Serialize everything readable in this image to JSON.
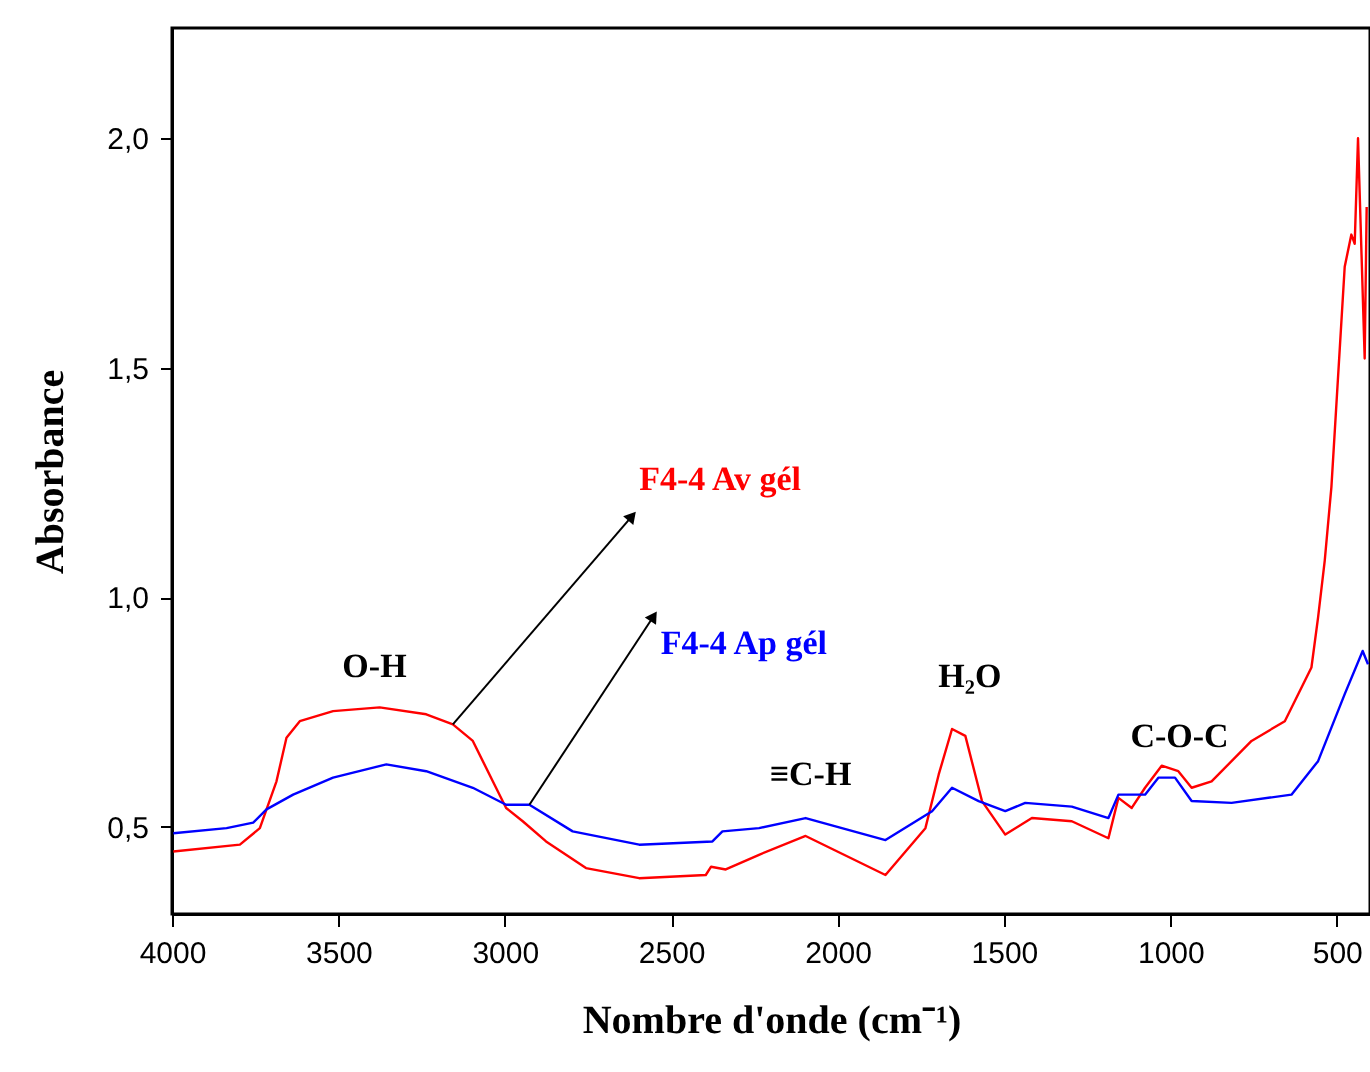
{
  "chart_data": {
    "type": "line",
    "xlabel": "Nombre d'onde (cm⁻¹)",
    "ylabel": "Absorbance",
    "xlim": [
      4000,
      400
    ],
    "ylim": [
      0.31,
      2.24
    ],
    "xticks": [
      4000,
      3500,
      3000,
      2500,
      2000,
      1500,
      1000,
      500
    ],
    "yticks": [
      {
        "value": 0.5,
        "label": "0,5"
      },
      {
        "value": 1.0,
        "label": "1,0"
      },
      {
        "value": 1.5,
        "label": "1,5"
      },
      {
        "value": 2.0,
        "label": "2,0"
      }
    ],
    "grid": false,
    "marker": "none",
    "line_style": "solid",
    "series": [
      {
        "name": "F4-4 Av gél",
        "color": "#ff0000",
        "x": [
          3996,
          3796,
          3736,
          3686,
          3656,
          3616,
          3516,
          3376,
          3236,
          3156,
          3096,
          3036,
          2996,
          2946,
          2876,
          2756,
          2596,
          2396,
          2380,
          2336,
          2236,
          2096,
          1856,
          1736,
          1696,
          1656,
          1616,
          1566,
          1496,
          1416,
          1296,
          1186,
          1156,
          1116,
          1076,
          1026,
          976,
          936,
          876,
          756,
          656,
          576,
          556,
          536,
          516,
          476,
          456,
          446,
          436,
          416,
          410
        ],
        "values": [
          0.446,
          0.461,
          0.497,
          0.599,
          0.694,
          0.73,
          0.752,
          0.76,
          0.745,
          0.723,
          0.687,
          0.599,
          0.541,
          0.512,
          0.468,
          0.41,
          0.388,
          0.395,
          0.413,
          0.407,
          0.439,
          0.48,
          0.395,
          0.497,
          0.614,
          0.713,
          0.698,
          0.556,
          0.483,
          0.519,
          0.512,
          0.475,
          0.563,
          0.541,
          0.585,
          0.633,
          0.621,
          0.585,
          0.599,
          0.687,
          0.73,
          0.847,
          0.956,
          1.08,
          1.24,
          1.72,
          1.79,
          1.77,
          2.0,
          1.52,
          1.85
        ]
      },
      {
        "name": "F4-4 Ap gél",
        "color": "#0000ff",
        "x": [
          3996,
          3836,
          3756,
          3716,
          3636,
          3516,
          3356,
          3236,
          3096,
          2996,
          2926,
          2796,
          2596,
          2376,
          2346,
          2236,
          2096,
          1856,
          1716,
          1656,
          1576,
          1496,
          1436,
          1296,
          1186,
          1156,
          1076,
          1036,
          986,
          936,
          816,
          636,
          556,
          476,
          422,
          406
        ],
        "values": [
          0.486,
          0.497,
          0.509,
          0.538,
          0.57,
          0.607,
          0.636,
          0.621,
          0.585,
          0.548,
          0.548,
          0.49,
          0.461,
          0.468,
          0.49,
          0.497,
          0.519,
          0.471,
          0.534,
          0.585,
          0.556,
          0.534,
          0.552,
          0.544,
          0.519,
          0.57,
          0.57,
          0.607,
          0.607,
          0.556,
          0.552,
          0.57,
          0.643,
          0.789,
          0.883,
          0.854
        ]
      }
    ],
    "annotations": [
      "O-H",
      "≡C-H",
      "H₂O",
      "C-O-C"
    ]
  }
}
